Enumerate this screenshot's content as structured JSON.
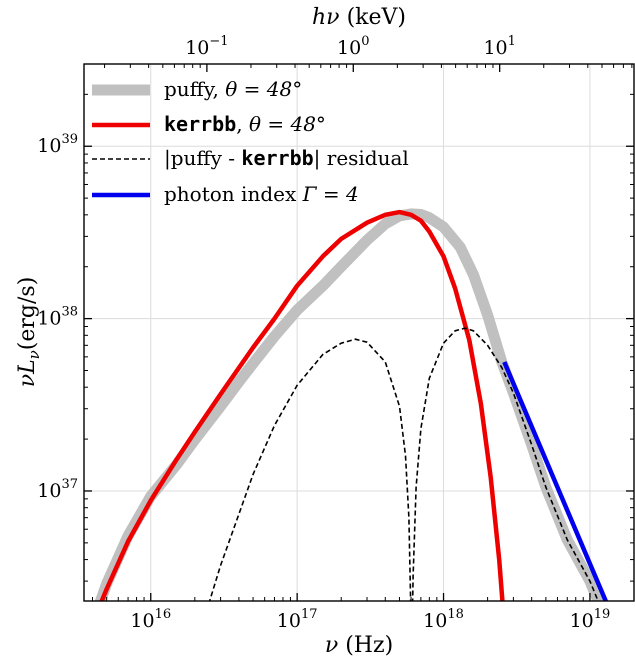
{
  "chart_data": {
    "type": "line",
    "x_scale": "log",
    "y_scale": "log",
    "xlim": [
      3500000000000000.0,
      2e+19
    ],
    "ylim": [
      2.3e+36,
      3e+39
    ],
    "grid": true,
    "xlabel": {
      "pre": "ν",
      "post": "(Hz)"
    },
    "ylabel": {
      "pre": "νL",
      "sub": "ν",
      "post": "(erg/s)"
    },
    "top_axis": {
      "label": {
        "pre": "hν",
        "post": "(keV)"
      },
      "ticks": [
        {
          "keV": 0.1,
          "base": "10",
          "exp": "−1"
        },
        {
          "keV": 1,
          "base": "10",
          "exp": "0"
        },
        {
          "keV": 10,
          "base": "10",
          "exp": "1"
        }
      ],
      "keV_to_Hz": 2.418e+17
    },
    "x_ticks": [
      {
        "value": 1e+16,
        "base": "10",
        "exp": "16"
      },
      {
        "value": 1e+17,
        "base": "10",
        "exp": "17"
      },
      {
        "value": 1e+18,
        "base": "10",
        "exp": "18"
      },
      {
        "value": 1e+19,
        "base": "10",
        "exp": "19"
      }
    ],
    "y_ticks": [
      {
        "value": 1e+37,
        "base": "10",
        "exp": "37"
      },
      {
        "value": 1e+38,
        "base": "10",
        "exp": "38"
      },
      {
        "value": 1e+39,
        "base": "10",
        "exp": "39"
      }
    ],
    "series": [
      {
        "name": "puffy, θ = 48°",
        "color": "#c0c0c0",
        "style": "thick",
        "points": [
          [
            4000000000000000.0,
            1.7e+36
          ],
          [
            5000000000000000.0,
            2.9e+36
          ],
          [
            7000000000000000.0,
            5.5e+36
          ],
          [
            1e+16,
            9.3e+36
          ],
          [
            1.5e+16,
            1.42e+37
          ],
          [
            2e+16,
            1.98e+37
          ],
          [
            3e+16,
            3.1e+37
          ],
          [
            4e+16,
            4.3e+37
          ],
          [
            5e+16,
            5.5e+37
          ],
          [
            7e+16,
            7.9e+37
          ],
          [
            1e+17,
            1.12e+38
          ],
          [
            1.5e+17,
            1.55e+38
          ],
          [
            2e+17,
            2e+38
          ],
          [
            3e+17,
            2.85e+38
          ],
          [
            4e+17,
            3.55e+38
          ],
          [
            5e+17,
            3.95e+38
          ],
          [
            6e+17,
            4.05e+38
          ],
          [
            7e+17,
            4.02e+38
          ],
          [
            8e+17,
            3.85e+38
          ],
          [
            1e+18,
            3.4e+38
          ],
          [
            1.3e+18,
            2.6e+38
          ],
          [
            1.6e+18,
            1.8e+38
          ],
          [
            2e+18,
            1.05e+38
          ],
          [
            2.5e+18,
            5.6e+37
          ],
          [
            3e+18,
            3.7e+37
          ],
          [
            4e+18,
            1.85e+37
          ],
          [
            5e+18,
            1.05e+37
          ],
          [
            7e+18,
            5.2e+36
          ],
          [
            1e+19,
            3e+36
          ],
          [
            1.3e+19,
            1.75e+36
          ]
        ]
      },
      {
        "name": "kerrbb, θ = 48°",
        "color": "#ee0000",
        "style": "solid",
        "points": [
          [
            4000000000000000.0,
            1.7e+36
          ],
          [
            5000000000000000.0,
            2.7e+36
          ],
          [
            7000000000000000.0,
            5.1e+36
          ],
          [
            1e+16,
            8.8e+36
          ],
          [
            1.5e+16,
            1.52e+37
          ],
          [
            2e+16,
            2.2e+37
          ],
          [
            3e+16,
            3.65e+37
          ],
          [
            5e+16,
            6.8e+37
          ],
          [
            7e+16,
            1e+38
          ],
          [
            1e+17,
            1.55e+38
          ],
          [
            1.5e+17,
            2.3e+38
          ],
          [
            2e+17,
            2.9e+38
          ],
          [
            3e+17,
            3.6e+38
          ],
          [
            4e+17,
            4e+38
          ],
          [
            5e+17,
            4.15e+38
          ],
          [
            6e+17,
            4e+38
          ],
          [
            7e+17,
            3.7e+38
          ],
          [
            8e+17,
            3.2e+38
          ],
          [
            1e+18,
            2.3e+38
          ],
          [
            1.2e+18,
            1.5e+38
          ],
          [
            1.5e+18,
            7.5e+37
          ],
          [
            1.8e+18,
            3.2e+37
          ],
          [
            2.1e+18,
            1.2e+37
          ],
          [
            2.4e+18,
            4e+36
          ],
          [
            2.7e+18,
            1.1e+36
          ]
        ]
      },
      {
        "name": "|puffy - kerrbb| residual",
        "color": "#000000",
        "style": "dashed",
        "points": [
          [
            2.4e+16,
            2e+36
          ],
          [
            3e+16,
            3.7e+36
          ],
          [
            5e+16,
            1.25e+37
          ],
          [
            7e+16,
            2.4e+37
          ],
          [
            1e+17,
            4.1e+37
          ],
          [
            1.5e+17,
            6.2e+37
          ],
          [
            2e+17,
            7.2e+37
          ],
          [
            2.5e+17,
            7.6e+37
          ],
          [
            3e+17,
            7.3e+37
          ],
          [
            4e+17,
            5.6e+37
          ],
          [
            5e+17,
            3.1e+37
          ],
          [
            5.5e+17,
            1.6e+37
          ],
          [
            5.8e+17,
            7e+36
          ],
          [
            5.95e+17,
            2.5e+36
          ],
          [
            6e+17,
            1.5e+36
          ],
          [
            6.1e+17,
            1.5e+36
          ],
          [
            6.2e+17,
            3.2e+36
          ],
          [
            6.5e+17,
            1.05e+37
          ],
          [
            7e+17,
            2.3e+37
          ],
          [
            8e+17,
            4.5e+37
          ],
          [
            1e+18,
            7.2e+37
          ],
          [
            1.2e+18,
            8.5e+37
          ],
          [
            1.4e+18,
            8.8e+37
          ],
          [
            1.6e+18,
            8.5e+37
          ],
          [
            2e+18,
            7e+37
          ],
          [
            2.5e+18,
            5.2e+37
          ],
          [
            3e+18,
            3.7e+37
          ],
          [
            4e+18,
            1.85e+37
          ],
          [
            5e+18,
            1.05e+37
          ],
          [
            7e+18,
            5.2e+36
          ],
          [
            1e+19,
            3e+36
          ],
          [
            1.3e+19,
            1.75e+36
          ]
        ]
      },
      {
        "name": "photon index Γ = 4",
        "color": "#0000ee",
        "style": "solid",
        "points": [
          [
            2.6e+18,
            5.6e+37
          ],
          [
            1.3e+19,
            2.24e+36
          ]
        ]
      }
    ],
    "legend": {
      "placement": "upper-left",
      "entries": [
        {
          "pre": "puffy, ",
          "mono": "",
          "post": "",
          "math": "θ = 48°"
        },
        {
          "pre": "",
          "mono": "kerrbb",
          "post": ", ",
          "math": "θ = 48°"
        },
        {
          "pre": "|puffy - ",
          "mono": "kerrbb",
          "post": "| residual",
          "math": ""
        },
        {
          "pre": "photon index ",
          "mono": "",
          "post": "",
          "math": "Γ  =  4"
        }
      ]
    }
  }
}
